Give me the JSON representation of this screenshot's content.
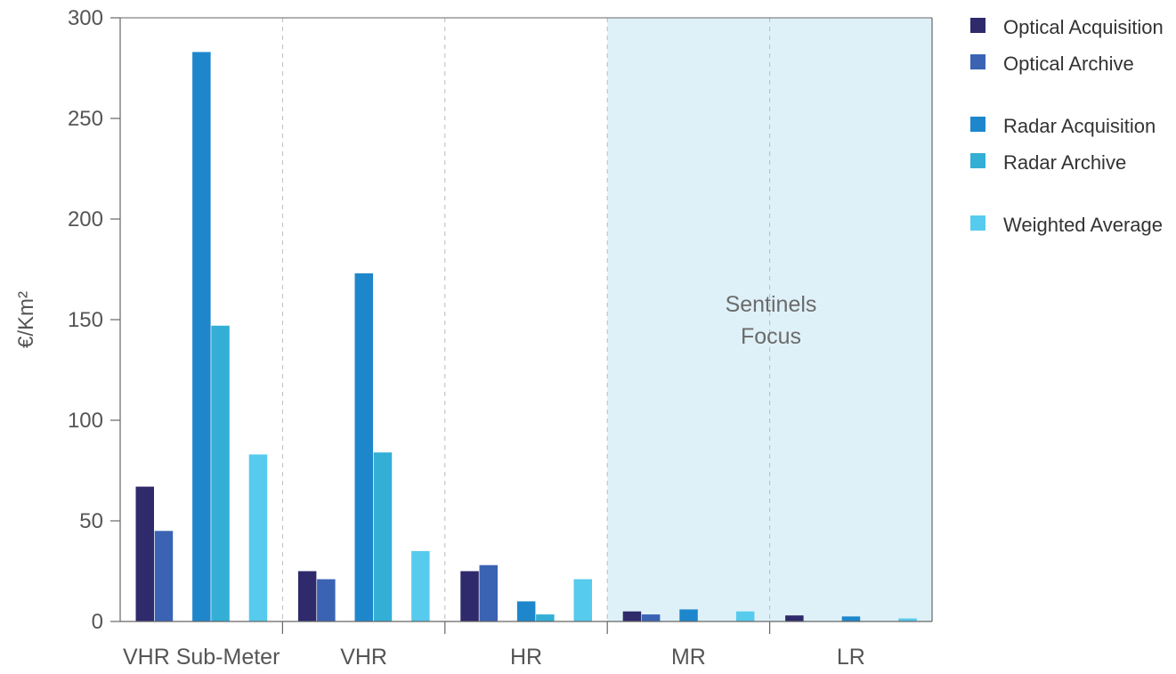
{
  "chart_data": {
    "type": "bar",
    "ylabel": "€/Km²",
    "ylim": [
      0,
      300
    ],
    "yticks": [
      "0",
      "50",
      "100",
      "150",
      "200",
      "250",
      "300"
    ],
    "categories": [
      "VHR Sub-Meter",
      "VHR",
      "HR",
      "MR",
      "LR"
    ],
    "series": [
      {
        "name": "Optical Acquisition",
        "color": "#2e2a6b",
        "values": [
          67,
          25,
          25,
          5,
          3
        ]
      },
      {
        "name": "Optical Archive",
        "color": "#3a63b3",
        "values": [
          45,
          21,
          28,
          3.5,
          0
        ]
      },
      {
        "name": "Radar Acquisition",
        "color": "#1e87cc",
        "values": [
          283,
          173,
          10,
          6,
          2.5
        ]
      },
      {
        "name": "Radar Archive",
        "color": "#33afd6",
        "values": [
          147,
          84,
          3.5,
          0,
          0
        ]
      },
      {
        "name": "Weighted Average",
        "color": "#57cbed",
        "values": [
          83,
          35,
          21,
          5,
          1.5
        ]
      }
    ],
    "annotation": "Sentinels\nFocus",
    "annotation_lines": [
      "Sentinels",
      "Focus"
    ],
    "highlight_color": "#dff1f8",
    "grid": false,
    "legend_position": "right"
  }
}
